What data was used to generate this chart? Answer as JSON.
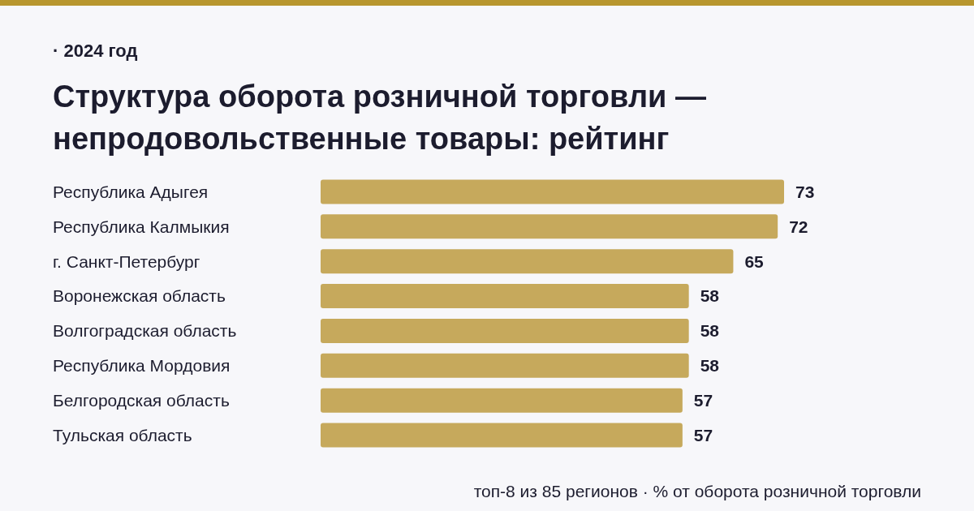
{
  "chart_data": {
    "type": "bar",
    "orientation": "horizontal",
    "title": "Структура оборота розничной торговли — непродовольственные товары: рейтинг",
    "subtitle": "· 2024 год",
    "categories": [
      "Республика Адыгея",
      "Республика Калмыкия",
      "г. Санкт-Петербург",
      "Воронежская область",
      "Волгоградская область",
      "Республика Мордовия",
      "Белгородская область",
      "Тульская область"
    ],
    "values": [
      73,
      72,
      65,
      58,
      58,
      58,
      57,
      57
    ],
    "color": "#c6a95c",
    "data_labels": true,
    "annotations": [
      "топ-8 из 85 регионов · % от оборота розничной торговли"
    ]
  }
}
